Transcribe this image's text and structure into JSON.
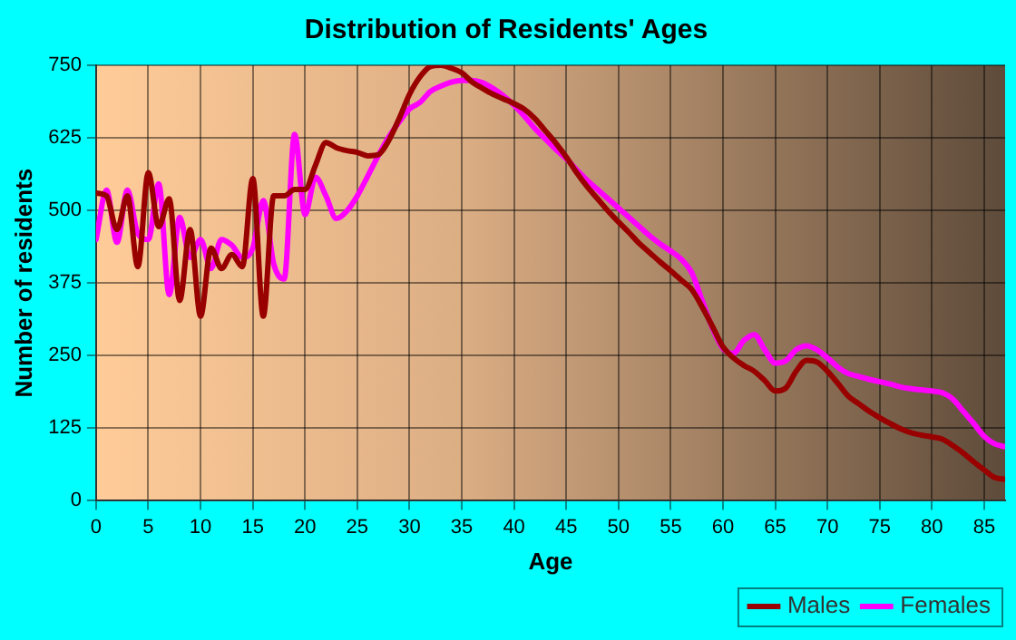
{
  "chart_data": {
    "type": "line",
    "title": "Distribution of Residents' Ages",
    "xlabel": "Age",
    "ylabel": "Number of residents",
    "x": [
      0,
      1,
      2,
      3,
      4,
      5,
      6,
      7,
      8,
      9,
      10,
      11,
      12,
      13,
      14,
      15,
      16,
      17,
      18,
      19,
      20,
      21,
      22,
      23,
      24,
      25,
      26,
      27,
      28,
      29,
      30,
      31,
      32,
      33,
      34,
      35,
      36,
      37,
      38,
      39,
      40,
      41,
      42,
      43,
      44,
      45,
      46,
      47,
      48,
      49,
      50,
      51,
      52,
      53,
      54,
      55,
      56,
      57,
      58,
      59,
      60,
      61,
      62,
      63,
      64,
      65,
      66,
      67,
      68,
      69,
      70,
      71,
      72,
      73,
      74,
      75,
      76,
      77,
      78,
      79,
      80,
      81,
      82,
      83,
      84,
      85,
      86,
      87
    ],
    "series": [
      {
        "name": "Males",
        "color": "#990000",
        "values": [
          530,
          525,
          467,
          525,
          403,
          565,
          472,
          520,
          345,
          467,
          318,
          435,
          400,
          424,
          403,
          555,
          318,
          525,
          525,
          536,
          536,
          578,
          617,
          608,
          603,
          600,
          594,
          596,
          620,
          658,
          700,
          730,
          748,
          750,
          745,
          737,
          721,
          710,
          700,
          692,
          684,
          674,
          658,
          637,
          616,
          592,
          565,
          541,
          520,
          499,
          480,
          462,
          443,
          427,
          411,
          396,
          380,
          364,
          334,
          300,
          265,
          246,
          233,
          223,
          207,
          189,
          194,
          223,
          242,
          239,
          223,
          202,
          180,
          167,
          154,
          143,
          133,
          124,
          117,
          113,
          110,
          106,
          95,
          82,
          67,
          53,
          40,
          37
        ]
      },
      {
        "name": "Females",
        "color": "#ff00ff",
        "values": [
          450,
          535,
          445,
          535,
          460,
          450,
          546,
          355,
          488,
          419,
          450,
          400,
          450,
          440,
          419,
          435,
          517,
          408,
          382,
          631,
          493,
          557,
          525,
          486,
          499,
          525,
          559,
          594,
          626,
          652,
          675,
          686,
          705,
          714,
          721,
          724,
          724,
          720,
          710,
          697,
          681,
          662,
          641,
          623,
          605,
          589,
          570,
          552,
          536,
          520,
          504,
          488,
          472,
          456,
          442,
          430,
          416,
          393,
          345,
          297,
          262,
          254,
          276,
          286,
          260,
          237,
          241,
          260,
          267,
          260,
          246,
          230,
          219,
          214,
          209,
          205,
          201,
          196,
          193,
          191,
          189,
          186,
          175,
          154,
          133,
          111,
          98,
          93
        ]
      }
    ],
    "xlim": [
      0,
      87
    ],
    "xticks": [
      0,
      5,
      10,
      15,
      20,
      25,
      30,
      35,
      40,
      45,
      50,
      55,
      60,
      65,
      70,
      75,
      80,
      85
    ],
    "ylim": [
      0,
      750
    ],
    "yticks": [
      0,
      125,
      250,
      375,
      500,
      625,
      750
    ],
    "grid": true,
    "legend": "bottom right",
    "marker": "none",
    "line_style": "solid"
  }
}
